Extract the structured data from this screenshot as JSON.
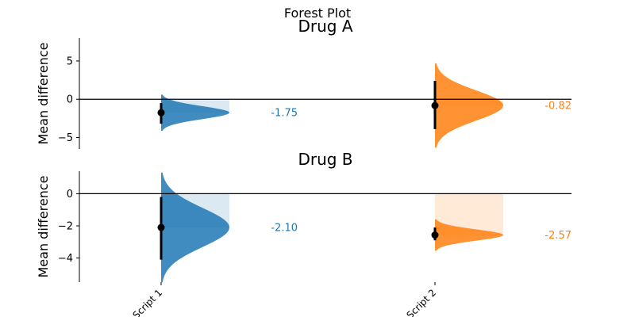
{
  "chart_data": {
    "type": "forest",
    "title": "Forest Plot",
    "categories": [
      "Script 1",
      "Script 2"
    ],
    "colors": [
      "#1f77b4",
      "#ff7f0e"
    ],
    "panels": [
      {
        "title": "Drug A",
        "ylabel": "Mean difference",
        "ylim": [
          -6.5,
          8
        ],
        "yticks": [
          5,
          0,
          -5
        ],
        "ytick_labels": [
          "5",
          "0",
          "−5"
        ],
        "points": [
          {
            "category": "Script 1",
            "mean": -1.75,
            "ci": [
              -3.2,
              -0.5
            ],
            "label": "-1.75"
          },
          {
            "category": "Script 2",
            "mean": -0.82,
            "ci": [
              -3.9,
              2.4
            ],
            "label": "-0.82"
          }
        ]
      },
      {
        "title": "Drug B",
        "ylabel": "Mean difference",
        "ylim": [
          -5.5,
          1.4
        ],
        "yticks": [
          0,
          -2,
          -4
        ],
        "ytick_labels": [
          "0",
          "−2",
          "−4"
        ],
        "points": [
          {
            "category": "Script 1",
            "mean": -2.1,
            "ci": [
              -4.1,
              -0.2
            ],
            "label": "-2.10"
          },
          {
            "category": "Script 2",
            "mean": -2.57,
            "ci": [
              -2.9,
              -2.1
            ],
            "label": "-2.57"
          }
        ]
      }
    ]
  }
}
